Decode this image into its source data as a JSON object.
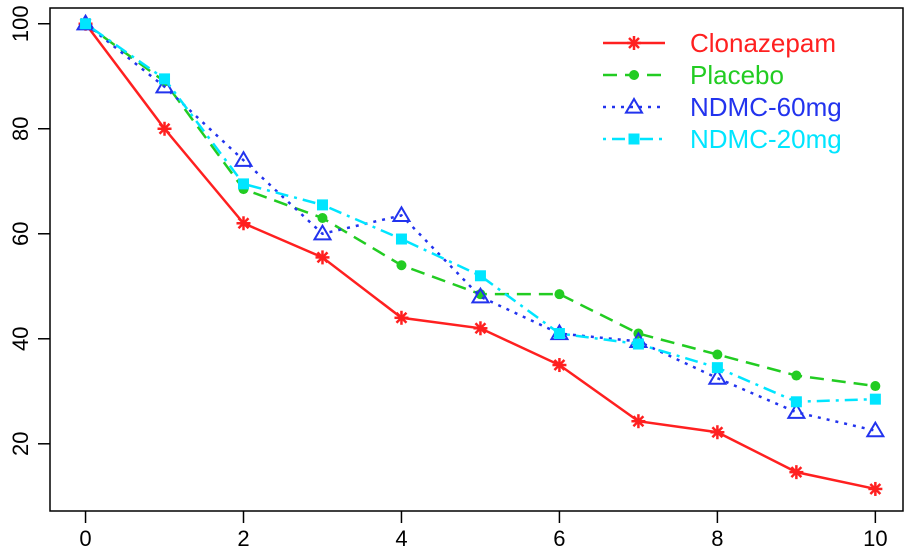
{
  "chart_data": {
    "type": "line",
    "title": "",
    "xlabel": "",
    "ylabel": "",
    "x": [
      0,
      1,
      2,
      3,
      4,
      5,
      6,
      7,
      8,
      9,
      10
    ],
    "xlim": [
      -0.45,
      10.35
    ],
    "ylim": [
      7.2,
      103.0
    ],
    "x_ticks": [
      0,
      2,
      4,
      6,
      8,
      10
    ],
    "y_ticks": [
      20,
      40,
      60,
      80,
      100
    ],
    "grid": false,
    "legend_position": "top-right",
    "series": [
      {
        "name": "Clonazepam",
        "color": "#ff2020",
        "line_style": "solid",
        "marker": "asterisk",
        "values": [
          100,
          80,
          62,
          55.5,
          44,
          42,
          35,
          24.3,
          22.2,
          14.6,
          11.4
        ]
      },
      {
        "name": "Placebo",
        "color": "#22cc22",
        "line_style": "dashed",
        "marker": "circle",
        "values": [
          100,
          89,
          68.5,
          63,
          54,
          48.5,
          48.5,
          41,
          37,
          33,
          31
        ]
      },
      {
        "name": "NDMC-60mg",
        "color": "#2233ee",
        "line_style": "dotted",
        "marker": "triangle",
        "values": [
          100,
          88,
          74,
          60,
          63.5,
          48,
          41,
          39.5,
          32.5,
          26,
          22.5
        ]
      },
      {
        "name": "NDMC-20mg",
        "color": "#00e5ff",
        "line_style": "dashdot",
        "marker": "square",
        "values": [
          100,
          89.5,
          69.5,
          65.5,
          59,
          52,
          41,
          39,
          34.5,
          28,
          28.5
        ]
      }
    ]
  }
}
